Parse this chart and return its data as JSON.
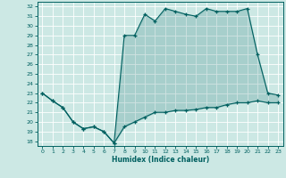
{
  "xlabel": "Humidex (Indice chaleur)",
  "background_color": "#cce8e4",
  "line_color": "#006060",
  "fill_color": "#006060",
  "fill_alpha": 0.18,
  "xlim": [
    -0.5,
    23.5
  ],
  "ylim": [
    17.5,
    32.5
  ],
  "yticks": [
    18,
    19,
    20,
    21,
    22,
    23,
    24,
    25,
    26,
    27,
    28,
    29,
    30,
    31,
    32
  ],
  "xticks": [
    0,
    1,
    2,
    3,
    4,
    5,
    6,
    7,
    8,
    9,
    10,
    11,
    12,
    13,
    14,
    15,
    16,
    17,
    18,
    19,
    20,
    21,
    22,
    23
  ],
  "upper_line": [
    [
      0,
      23.0
    ],
    [
      1,
      22.2
    ],
    [
      2,
      21.5
    ],
    [
      3,
      20.0
    ],
    [
      4,
      19.3
    ],
    [
      5,
      19.5
    ],
    [
      6,
      19.0
    ],
    [
      7,
      17.8
    ],
    [
      8,
      29.0
    ],
    [
      9,
      29.0
    ],
    [
      10,
      31.2
    ],
    [
      11,
      30.5
    ],
    [
      12,
      31.8
    ],
    [
      13,
      31.5
    ],
    [
      14,
      31.2
    ],
    [
      15,
      31.0
    ],
    [
      16,
      31.8
    ],
    [
      17,
      31.5
    ],
    [
      18,
      31.5
    ],
    [
      19,
      31.5
    ],
    [
      20,
      31.8
    ],
    [
      21,
      27.0
    ],
    [
      22,
      23.0
    ],
    [
      23,
      22.8
    ]
  ],
  "lower_line": [
    [
      0,
      23.0
    ],
    [
      1,
      22.2
    ],
    [
      2,
      21.5
    ],
    [
      3,
      20.0
    ],
    [
      4,
      19.3
    ],
    [
      5,
      19.5
    ],
    [
      6,
      19.0
    ],
    [
      7,
      17.8
    ],
    [
      8,
      19.5
    ],
    [
      9,
      20.0
    ],
    [
      10,
      20.5
    ],
    [
      11,
      21.0
    ],
    [
      12,
      21.0
    ],
    [
      13,
      21.2
    ],
    [
      14,
      21.2
    ],
    [
      15,
      21.3
    ],
    [
      16,
      21.5
    ],
    [
      17,
      21.5
    ],
    [
      18,
      21.8
    ],
    [
      19,
      22.0
    ],
    [
      20,
      22.0
    ],
    [
      21,
      22.2
    ],
    [
      22,
      22.0
    ],
    [
      23,
      22.0
    ]
  ],
  "figsize": [
    3.2,
    2.0
  ],
  "dpi": 100
}
